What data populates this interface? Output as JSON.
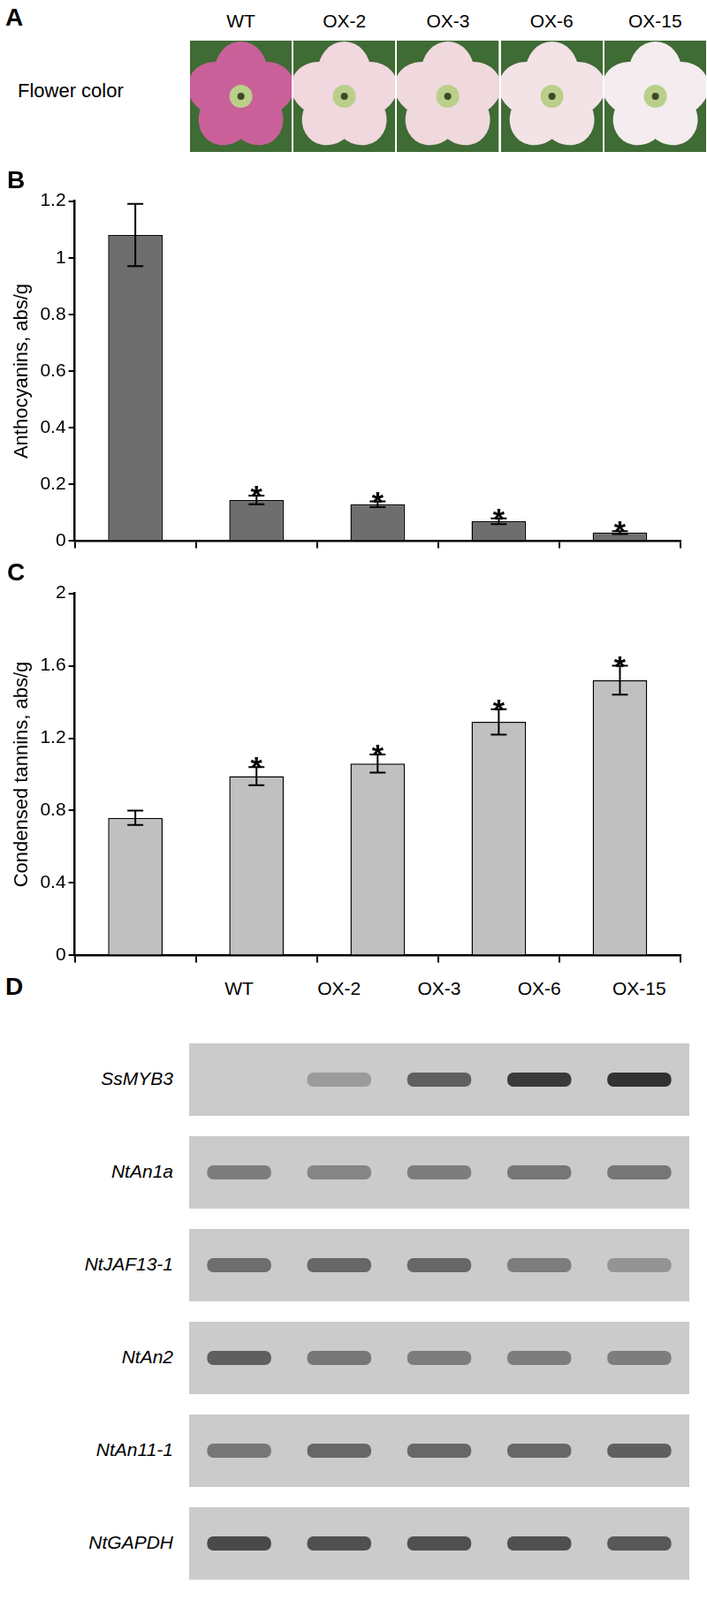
{
  "figure": {
    "panel_A": {
      "letter": "A",
      "row_label": "Flower color",
      "columns": [
        "WT",
        "OX-2",
        "OX-3",
        "OX-6",
        "OX-15"
      ],
      "colors": [
        "#c9609a",
        "#f1d7de",
        "#f0d9dd",
        "#f3e3e6",
        "#f4ecee"
      ]
    },
    "panel_D": {
      "letter": "D",
      "columns": [
        "WT",
        "OX-2",
        "OX-3",
        "OX-6",
        "OX-15"
      ],
      "genes": [
        {
          "name": "SsMYB3",
          "band_intensity": [
            0,
            0.3,
            0.7,
            0.95,
            1
          ]
        },
        {
          "name": "NtAn1a",
          "band_intensity": [
            0.5,
            0.45,
            0.5,
            0.55,
            0.55
          ]
        },
        {
          "name": "NtJAF13-1",
          "band_intensity": [
            0.6,
            0.65,
            0.65,
            0.5,
            0.35
          ]
        },
        {
          "name": "NtAn2",
          "band_intensity": [
            0.7,
            0.55,
            0.5,
            0.5,
            0.5
          ]
        },
        {
          "name": "NtAn11-1",
          "band_intensity": [
            0.55,
            0.65,
            0.65,
            0.65,
            0.7
          ]
        },
        {
          "name": "NtGAPDH",
          "band_intensity": [
            0.85,
            0.8,
            0.8,
            0.8,
            0.75
          ]
        }
      ]
    }
  },
  "chart_data": [
    {
      "type": "bar",
      "title": "B",
      "y_label": "Anthocyanins, abs/g",
      "categories": [
        null,
        null,
        null,
        null,
        null
      ],
      "values": [
        1.08,
        0.145,
        0.13,
        0.07,
        0.03
      ],
      "errors": [
        0.11,
        0.015,
        0.01,
        0.01,
        0.005
      ],
      "annotations": [
        null,
        "*",
        "*",
        "*",
        "*"
      ],
      "color": "#6e6e6e",
      "ylim": [
        0,
        1.2
      ],
      "yticks": [
        0,
        0.2,
        0.4,
        0.6,
        0.8,
        1,
        1.2
      ],
      "grid": false,
      "tick_labels": "y"
    },
    {
      "type": "bar",
      "title": "C",
      "y_label": "Condensed tannins, abs/g",
      "categories": [
        null,
        null,
        null,
        null,
        null
      ],
      "values": [
        0.76,
        0.99,
        1.06,
        1.29,
        1.52
      ],
      "errors": [
        0.04,
        0.05,
        0.05,
        0.07,
        0.08
      ],
      "annotations": [
        null,
        "*",
        "*",
        "*",
        "*"
      ],
      "color": "#c0c0c0",
      "ylim": [
        0,
        2
      ],
      "yticks": [
        0,
        0.4,
        0.8,
        1.2,
        1.6,
        2
      ],
      "grid": false,
      "tick_labels": "y"
    }
  ]
}
